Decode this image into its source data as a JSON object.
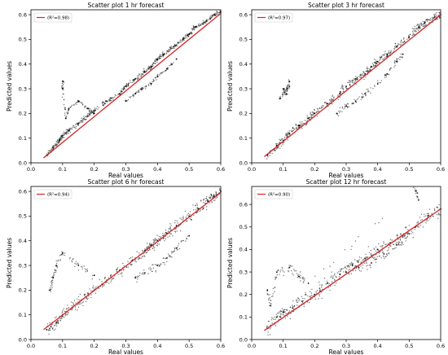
{
  "chart_data": [
    {
      "type": "scatter",
      "title": "Scatter plot 1 hr forecast",
      "xlabel": "Real values",
      "ylabel": "Predicted values",
      "xlim": [
        0.0,
        0.6
      ],
      "ylim": [
        0.0,
        0.62
      ],
      "xticks": [
        "0.0",
        "0.1",
        "0.2",
        "0.3",
        "0.4",
        "0.5",
        "0.6"
      ],
      "yticks": [
        "0.0",
        "0.1",
        "0.2",
        "0.3",
        "0.4",
        "0.5",
        "0.6"
      ],
      "legend": {
        "label": "(R²=0.98)",
        "placement": "top-left"
      },
      "fit_line": {
        "x": [
          0.04,
          0.6
        ],
        "y": [
          0.02,
          0.605
        ],
        "color": "#d62728"
      },
      "point_color": "#000000",
      "series": [
        {
          "x": [
            0.05,
            0.07,
            0.09,
            0.1,
            0.12,
            0.15,
            0.18,
            0.2,
            0.24,
            0.28,
            0.3,
            0.33,
            0.36,
            0.38,
            0.4,
            0.42,
            0.45,
            0.48,
            0.5,
            0.52,
            0.55,
            0.58,
            0.6
          ],
          "y": [
            0.03,
            0.06,
            0.09,
            0.11,
            0.13,
            0.16,
            0.19,
            0.21,
            0.25,
            0.28,
            0.31,
            0.34,
            0.37,
            0.39,
            0.42,
            0.44,
            0.47,
            0.5,
            0.52,
            0.55,
            0.57,
            0.6,
            0.61
          ]
        },
        {
          "x": [
            0.3,
            0.33,
            0.35,
            0.38,
            0.4,
            0.43,
            0.46
          ],
          "y": [
            0.25,
            0.28,
            0.3,
            0.32,
            0.35,
            0.38,
            0.42
          ]
        },
        {
          "x": [
            0.1,
            0.1,
            0.11,
            0.12,
            0.15,
            0.18,
            0.2
          ],
          "y": [
            0.33,
            0.3,
            0.18,
            0.22,
            0.25,
            0.22,
            0.2
          ]
        }
      ]
    },
    {
      "type": "scatter",
      "title": "Scatter plot 3 hr forecast",
      "xlabel": "Real values",
      "ylabel": "Predicted values",
      "xlim": [
        0.0,
        0.6
      ],
      "ylim": [
        0.0,
        0.62
      ],
      "xticks": [
        "0.0",
        "0.1",
        "0.2",
        "0.3",
        "0.4",
        "0.5",
        "0.6"
      ],
      "yticks": [
        "0.0",
        "0.1",
        "0.2",
        "0.3",
        "0.4",
        "0.5",
        "0.6"
      ],
      "legend": {
        "label": "(R²=0.97)",
        "placement": "top-left"
      },
      "fit_line": {
        "x": [
          0.04,
          0.6
        ],
        "y": [
          0.025,
          0.6
        ],
        "color": "#d62728"
      },
      "point_color": "#000000",
      "series": [
        {
          "x": [
            0.05,
            0.08,
            0.1,
            0.12,
            0.15,
            0.18,
            0.2,
            0.24,
            0.28,
            0.3,
            0.33,
            0.36,
            0.38,
            0.4,
            0.43,
            0.46,
            0.5,
            0.53,
            0.55,
            0.58,
            0.6
          ],
          "y": [
            0.03,
            0.07,
            0.09,
            0.12,
            0.15,
            0.18,
            0.2,
            0.24,
            0.28,
            0.31,
            0.34,
            0.36,
            0.39,
            0.41,
            0.44,
            0.47,
            0.51,
            0.55,
            0.57,
            0.59,
            0.6
          ]
        },
        {
          "x": [
            0.27,
            0.3,
            0.33,
            0.36,
            0.4,
            0.43,
            0.46,
            0.48
          ],
          "y": [
            0.2,
            0.23,
            0.25,
            0.28,
            0.32,
            0.36,
            0.41,
            0.44
          ]
        },
        {
          "x": [
            0.1,
            0.11,
            0.12,
            0.09,
            0.12
          ],
          "y": [
            0.3,
            0.28,
            0.33,
            0.26,
            0.31
          ]
        }
      ]
    },
    {
      "type": "scatter",
      "title": "Scatter plot 6 hr forecast",
      "xlabel": "Real values",
      "ylabel": "Predicted values",
      "xlim": [
        0.0,
        0.6
      ],
      "ylim": [
        0.0,
        0.62
      ],
      "xticks": [
        "0.0",
        "0.1",
        "0.2",
        "0.3",
        "0.4",
        "0.5",
        "0.6"
      ],
      "yticks": [
        "0.0",
        "0.1",
        "0.2",
        "0.3",
        "0.4",
        "0.5",
        "0.6"
      ],
      "legend": {
        "label": "(R²=0.94)",
        "placement": "top-left"
      },
      "fit_line": {
        "x": [
          0.04,
          0.6
        ],
        "y": [
          0.04,
          0.595
        ],
        "color": "#d62728"
      },
      "point_color": "#000000",
      "series": [
        {
          "x": [
            0.05,
            0.08,
            0.1,
            0.13,
            0.16,
            0.2,
            0.24,
            0.28,
            0.32,
            0.36,
            0.38,
            0.4,
            0.43,
            0.46,
            0.5,
            0.53,
            0.56,
            0.58,
            0.6
          ],
          "y": [
            0.04,
            0.07,
            0.1,
            0.13,
            0.16,
            0.2,
            0.24,
            0.28,
            0.32,
            0.36,
            0.38,
            0.4,
            0.43,
            0.46,
            0.5,
            0.53,
            0.56,
            0.58,
            0.6
          ]
        },
        {
          "x": [
            0.33,
            0.36,
            0.4,
            0.43,
            0.46,
            0.5
          ],
          "y": [
            0.25,
            0.27,
            0.3,
            0.33,
            0.37,
            0.42
          ]
        },
        {
          "x": [
            0.06,
            0.07,
            0.08,
            0.1,
            0.15,
            0.2
          ],
          "y": [
            0.2,
            0.25,
            0.3,
            0.35,
            0.3,
            0.26
          ]
        }
      ]
    },
    {
      "type": "scatter",
      "title": "Scatter plot 12 hr forecast",
      "xlabel": "Real values",
      "ylabel": "Predicted values",
      "xlim": [
        0.0,
        0.6
      ],
      "ylim": [
        0.0,
        0.68
      ],
      "xticks": [
        "0.0",
        "0.1",
        "0.2",
        "0.3",
        "0.4",
        "0.5",
        "0.6"
      ],
      "yticks": [
        "0.0",
        "0.1",
        "0.2",
        "0.3",
        "0.4",
        "0.5",
        "0.6"
      ],
      "legend": {
        "label": "(R²=0.90)",
        "placement": "top-left"
      },
      "fit_line": {
        "x": [
          0.04,
          0.6
        ],
        "y": [
          0.04,
          0.58
        ],
        "color": "#d62728"
      },
      "point_color": "#000000",
      "series": [
        {
          "x": [
            0.05,
            0.08,
            0.1,
            0.13,
            0.16,
            0.2,
            0.24,
            0.28,
            0.32,
            0.36,
            0.4,
            0.44,
            0.48,
            0.52,
            0.56,
            0.6
          ],
          "y": [
            0.05,
            0.1,
            0.12,
            0.14,
            0.17,
            0.2,
            0.25,
            0.29,
            0.33,
            0.36,
            0.4,
            0.43,
            0.46,
            0.5,
            0.55,
            0.58
          ]
        },
        {
          "x": [
            0.3,
            0.34,
            0.38,
            0.42,
            0.46,
            0.5
          ],
          "y": [
            0.3,
            0.32,
            0.34,
            0.38,
            0.42,
            0.47
          ]
        },
        {
          "x": [
            0.05,
            0.06,
            0.08,
            0.12,
            0.15,
            0.18,
            0.52,
            0.53
          ],
          "y": [
            0.22,
            0.15,
            0.3,
            0.32,
            0.28,
            0.25,
            0.66,
            0.62
          ]
        }
      ]
    }
  ]
}
